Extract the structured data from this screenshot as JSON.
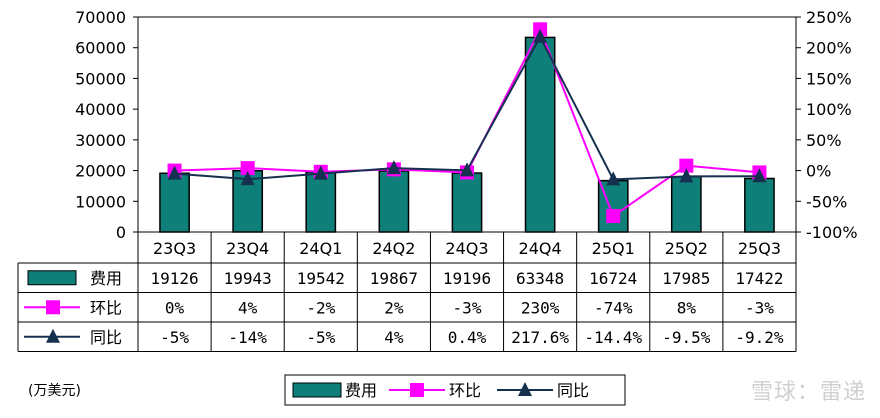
{
  "unit_label": "(万美元)",
  "watermark": "雪球：雷递",
  "colors": {
    "bar": "#0f7f7a",
    "qoq": "#ff00ff",
    "yoy": "#16314f"
  },
  "chart_data": {
    "type": "bar",
    "categories": [
      "23Q3",
      "23Q4",
      "24Q1",
      "24Q2",
      "24Q3",
      "24Q4",
      "25Q1",
      "25Q2",
      "25Q3"
    ],
    "left_axis": {
      "ylim": [
        0,
        70000
      ],
      "ticks": [
        "0",
        "10000",
        "20000",
        "30000",
        "40000",
        "50000",
        "60000",
        "70000"
      ]
    },
    "right_axis": {
      "ylim": [
        -100,
        250
      ],
      "ticks": [
        "-100%",
        "-50%",
        "0%",
        "50%",
        "100%",
        "150%",
        "200%",
        "250%"
      ]
    },
    "series": [
      {
        "name": "费用",
        "type": "bar",
        "axis": "left",
        "values": [
          19126,
          19943,
          19542,
          19867,
          19196,
          63348,
          16724,
          17985,
          17422
        ],
        "labels": [
          "19126",
          "19943",
          "19542",
          "19867",
          "19196",
          "63348",
          "16724",
          "17985",
          "17422"
        ]
      },
      {
        "name": "环比",
        "type": "line",
        "axis": "right",
        "marker": "square",
        "values": [
          0,
          4,
          -2,
          2,
          -3,
          230,
          -74,
          8,
          -3
        ],
        "labels": [
          "0%",
          "4%",
          "-2%",
          "2%",
          "-3%",
          "230%",
          "-74%",
          "8%",
          "-3%"
        ]
      },
      {
        "name": "同比",
        "type": "line",
        "axis": "right",
        "marker": "triangle",
        "values": [
          -5,
          -14,
          -5,
          4,
          0.4,
          217.6,
          -14.4,
          -9.5,
          -9.2
        ],
        "labels": [
          "-5%",
          "-14%",
          "-5%",
          "4%",
          "0.4%",
          "217.6%",
          "-14.4%",
          "-9.5%",
          "-9.2%"
        ]
      }
    ],
    "legend": [
      "费用",
      "环比",
      "同比"
    ],
    "legend_position": "bottom",
    "grid": false
  }
}
